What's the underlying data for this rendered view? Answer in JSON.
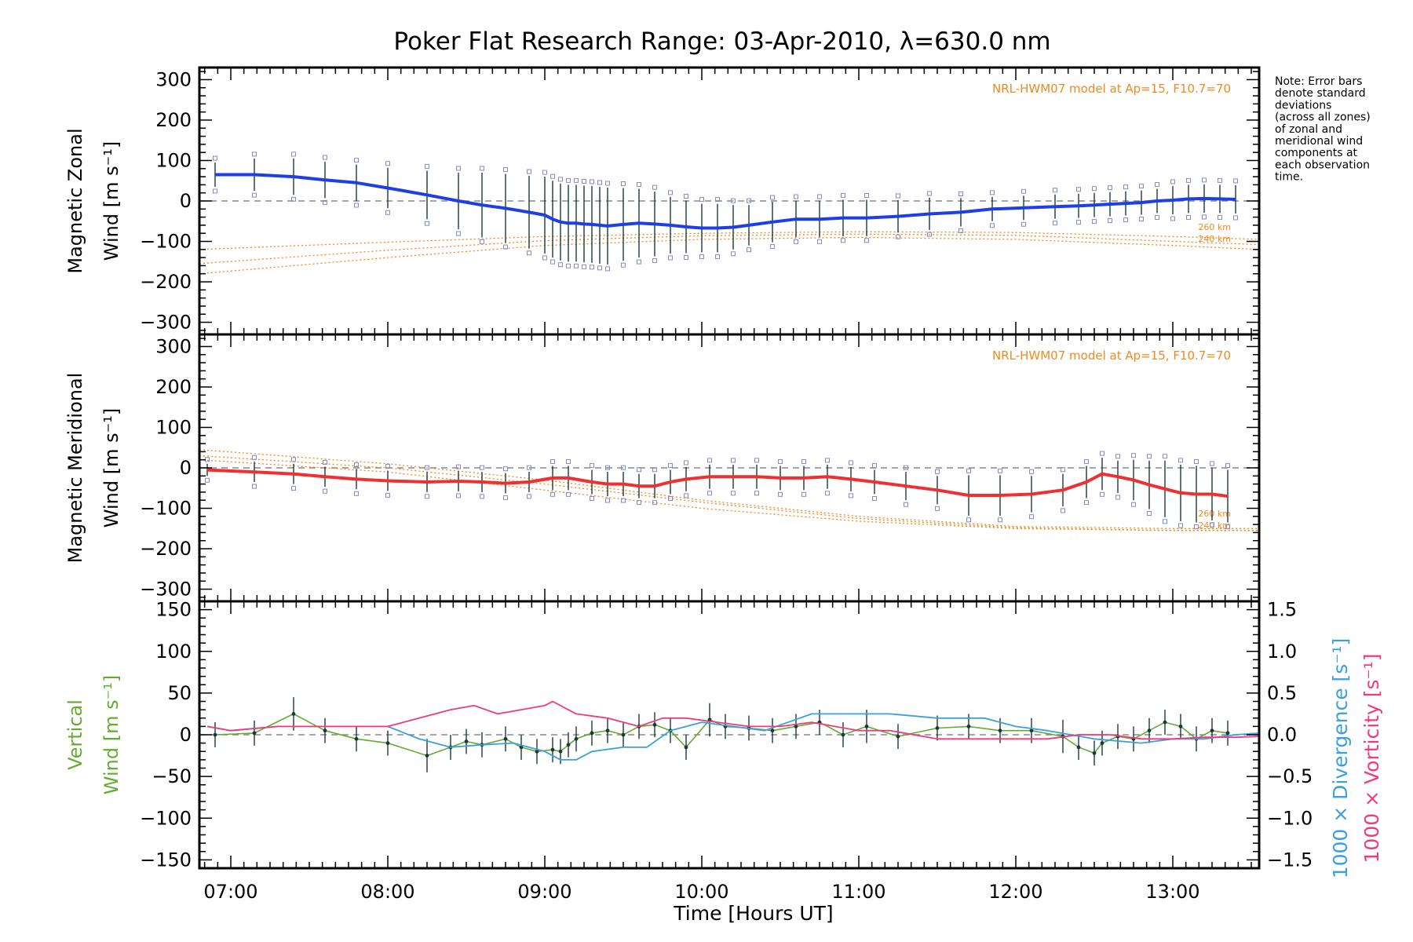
{
  "title": "Poker Flat Research Range: 03-Apr-2010, λ=630.0 nm",
  "note": [
    "Note: Error bars",
    "denote standard",
    "deviations",
    "(across all zones)",
    "of zonal and",
    "meridional wind",
    "components at",
    "each observation",
    "time."
  ],
  "xlabel": "Time [Hours UT]",
  "colors": {
    "zonal": "#1f3fe6",
    "meridional": "#f03030",
    "vertical": "#66aa33",
    "divergence": "#3ba0dd",
    "vorticity": "#ee3c7a",
    "model": "#ef8a1f",
    "zone_marker": "#8888cc",
    "error_bar": "#1a3a3a"
  },
  "chart_data": [
    {
      "type": "line",
      "panel": "zonal",
      "ylabel_line1": "Magnetic Zonal",
      "ylabel_line2": "Wind [m s⁻¹]",
      "ylim": [
        -330,
        330
      ],
      "yticks": [
        "300",
        "200",
        "100",
        "0",
        "−100",
        "−200",
        "−300"
      ],
      "yticks_values": [
        300,
        200,
        100,
        0,
        -100,
        -200,
        -300
      ],
      "xlim": [
        6.8,
        13.55
      ],
      "xticks": [
        "07:00",
        "08:00",
        "09:00",
        "10:00",
        "11:00",
        "12:00",
        "13:00"
      ],
      "xticks_values": [
        7,
        8,
        9,
        10,
        11,
        12,
        13
      ],
      "model_label": "NRL-HWM07 model at Ap=15, F10.7=70",
      "model_levels": [
        "260 km",
        "240 km"
      ],
      "model_curves": [
        {
          "x": [
            6.8,
            8,
            9,
            10,
            11,
            12,
            13,
            13.55
          ],
          "y": [
            -120,
            -102,
            -88,
            -80,
            -76,
            -78,
            -88,
            -95
          ]
        },
        {
          "x": [
            6.8,
            8,
            9,
            10,
            11,
            12,
            13,
            13.55
          ],
          "y": [
            -155,
            -122,
            -98,
            -86,
            -82,
            -85,
            -100,
            -108
          ]
        },
        {
          "x": [
            6.8,
            8,
            9,
            10,
            11,
            12,
            13,
            13.55
          ],
          "y": [
            -180,
            -140,
            -110,
            -95,
            -90,
            -95,
            -110,
            -120
          ]
        }
      ],
      "series": [
        {
          "name": "Magnetic Zonal Wind",
          "x": [
            6.9,
            7.15,
            7.4,
            7.6,
            7.8,
            8.0,
            8.25,
            8.45,
            8.6,
            8.75,
            8.9,
            9.0,
            9.05,
            9.1,
            9.15,
            9.2,
            9.25,
            9.3,
            9.35,
            9.4,
            9.5,
            9.6,
            9.7,
            9.8,
            9.9,
            10.0,
            10.1,
            10.2,
            10.3,
            10.45,
            10.6,
            10.75,
            10.9,
            11.05,
            11.25,
            11.45,
            11.65,
            11.85,
            12.05,
            12.25,
            12.4,
            12.5,
            12.6,
            12.7,
            12.8,
            12.9,
            13.0,
            13.1,
            13.2,
            13.3,
            13.4
          ],
          "y": [
            65,
            65,
            60,
            52,
            45,
            32,
            15,
            0,
            -10,
            -18,
            -28,
            -35,
            -45,
            -52,
            -55,
            -55,
            -57,
            -58,
            -60,
            -62,
            -58,
            -55,
            -57,
            -60,
            -64,
            -67,
            -67,
            -65,
            -60,
            -52,
            -45,
            -45,
            -42,
            -42,
            -38,
            -32,
            -28,
            -20,
            -17,
            -14,
            -12,
            -10,
            -8,
            -6,
            -4,
            0,
            2,
            5,
            6,
            5,
            4
          ],
          "err": [
            30,
            40,
            45,
            45,
            45,
            50,
            60,
            70,
            80,
            85,
            90,
            95,
            95,
            95,
            95,
            95,
            95,
            95,
            95,
            95,
            90,
            85,
            80,
            70,
            65,
            60,
            60,
            55,
            50,
            50,
            45,
            45,
            45,
            45,
            40,
            40,
            35,
            30,
            30,
            30,
            30,
            30,
            30,
            30,
            30,
            30,
            35,
            35,
            35,
            35,
            35
          ]
        }
      ]
    },
    {
      "type": "line",
      "panel": "meridional",
      "ylabel_line1": "Magnetic Meridional",
      "ylabel_line2": "Wind [m s⁻¹]",
      "ylim": [
        -330,
        330
      ],
      "yticks": [
        "300",
        "200",
        "100",
        "0",
        "−100",
        "−200",
        "−300"
      ],
      "yticks_values": [
        300,
        200,
        100,
        0,
        -100,
        -200,
        -300
      ],
      "model_label": "NRL-HWM07 model at Ap=15, F10.7=70",
      "model_levels": [
        "260 km",
        "240 km"
      ],
      "model_curves": [
        {
          "x": [
            6.8,
            8,
            9,
            10,
            11,
            12,
            13,
            13.55
          ],
          "y": [
            45,
            10,
            -30,
            -80,
            -120,
            -145,
            -150,
            -150
          ]
        },
        {
          "x": [
            6.8,
            8,
            9,
            10,
            11,
            12,
            13,
            13.55
          ],
          "y": [
            30,
            0,
            -40,
            -85,
            -125,
            -148,
            -155,
            -155
          ]
        },
        {
          "x": [
            6.8,
            8,
            9,
            10,
            11,
            12,
            13,
            13.55
          ],
          "y": [
            20,
            -10,
            -55,
            -100,
            -132,
            -150,
            -155,
            -155
          ]
        }
      ],
      "series": [
        {
          "name": "Magnetic Meridional Wind",
          "x": [
            6.85,
            7.15,
            7.4,
            7.6,
            7.8,
            8.0,
            8.25,
            8.45,
            8.6,
            8.75,
            8.9,
            9.05,
            9.15,
            9.3,
            9.4,
            9.5,
            9.6,
            9.7,
            9.8,
            9.9,
            10.05,
            10.2,
            10.35,
            10.5,
            10.65,
            10.8,
            10.95,
            11.1,
            11.3,
            11.5,
            11.7,
            11.9,
            12.1,
            12.3,
            12.45,
            12.55,
            12.65,
            12.75,
            12.85,
            12.95,
            13.05,
            13.15,
            13.25,
            13.35
          ],
          "y": [
            -5,
            -10,
            -15,
            -22,
            -28,
            -32,
            -35,
            -33,
            -35,
            -38,
            -35,
            -25,
            -25,
            -35,
            -40,
            -40,
            -45,
            -45,
            -35,
            -28,
            -22,
            -22,
            -22,
            -25,
            -25,
            -22,
            -28,
            -35,
            -45,
            -55,
            -68,
            -68,
            -65,
            -55,
            -35,
            -15,
            -22,
            -30,
            -42,
            -52,
            -62,
            -65,
            -65,
            -70
          ],
          "err": [
            15,
            25,
            25,
            25,
            25,
            25,
            25,
            25,
            25,
            25,
            25,
            30,
            30,
            30,
            30,
            30,
            30,
            30,
            30,
            30,
            30,
            30,
            30,
            30,
            30,
            30,
            30,
            30,
            35,
            35,
            50,
            50,
            45,
            40,
            40,
            40,
            40,
            50,
            60,
            70,
            70,
            70,
            65,
            65
          ]
        }
      ]
    },
    {
      "type": "line",
      "panel": "vertical",
      "ylabel_line1": "Vertical",
      "ylabel_line2": "Wind [m s⁻¹]",
      "y2label_divergence": "1000 × Divergence [s⁻¹]",
      "y2label_vorticity": "1000 × Vorticity [s⁻¹]",
      "ylim": [
        -160,
        160
      ],
      "yticks": [
        "150",
        "100",
        "50",
        "0",
        "−50",
        "−100",
        "−150"
      ],
      "yticks_values": [
        150,
        100,
        50,
        0,
        -50,
        -100,
        -150
      ],
      "y2lim": [
        -1.6,
        1.6
      ],
      "y2ticks": [
        "1.5",
        "1.0",
        "0.5",
        "0.0",
        "−0.5",
        "−1.0",
        "−1.5"
      ],
      "y2ticks_values": [
        1.5,
        1.0,
        0.5,
        0.0,
        -0.5,
        -1.0,
        -1.5
      ],
      "series": [
        {
          "name": "Vertical Wind",
          "axis": "left",
          "x": [
            6.9,
            7.15,
            7.4,
            7.6,
            7.8,
            8.0,
            8.25,
            8.4,
            8.5,
            8.6,
            8.75,
            8.85,
            8.95,
            9.05,
            9.1,
            9.15,
            9.2,
            9.3,
            9.4,
            9.5,
            9.6,
            9.7,
            9.8,
            9.9,
            10.05,
            10.15,
            10.3,
            10.45,
            10.6,
            10.75,
            10.9,
            11.05,
            11.25,
            11.5,
            11.7,
            11.9,
            12.1,
            12.3,
            12.4,
            12.5,
            12.55,
            12.65,
            12.75,
            12.85,
            12.95,
            13.05,
            13.15,
            13.25,
            13.35
          ],
          "y": [
            0,
            2,
            25,
            5,
            -5,
            -10,
            -25,
            -15,
            -8,
            -12,
            -5,
            -15,
            -20,
            -18,
            -20,
            -12,
            -5,
            2,
            5,
            0,
            10,
            12,
            5,
            -15,
            18,
            10,
            8,
            5,
            10,
            15,
            0,
            10,
            -2,
            8,
            10,
            5,
            5,
            -2,
            -15,
            -22,
            -10,
            -2,
            -5,
            5,
            15,
            10,
            -5,
            5,
            2
          ],
          "err": [
            15,
            15,
            20,
            15,
            15,
            15,
            20,
            15,
            15,
            15,
            15,
            15,
            15,
            15,
            15,
            15,
            15,
            15,
            15,
            15,
            15,
            15,
            15,
            15,
            20,
            15,
            15,
            15,
            15,
            15,
            15,
            20,
            15,
            15,
            15,
            15,
            15,
            20,
            15,
            15,
            15,
            15,
            15,
            15,
            15,
            15,
            15,
            15,
            15
          ]
        },
        {
          "name": "1000 × Divergence",
          "axis": "right",
          "x": [
            6.85,
            7.0,
            7.3,
            7.6,
            8.0,
            8.2,
            8.4,
            8.6,
            8.8,
            9.0,
            9.1,
            9.2,
            9.3,
            9.5,
            9.65,
            9.8,
            10.0,
            10.2,
            10.4,
            10.7,
            11.0,
            11.2,
            11.5,
            11.8,
            12.0,
            12.2,
            12.5,
            12.8,
            13.0,
            13.2,
            13.4,
            13.55
          ],
          "y": [
            0.1,
            0.05,
            0.1,
            0.1,
            0.1,
            -0.05,
            -0.15,
            -0.12,
            -0.1,
            -0.2,
            -0.3,
            -0.3,
            -0.2,
            -0.15,
            -0.15,
            0.05,
            0.15,
            0.1,
            0.05,
            0.25,
            0.25,
            0.25,
            0.2,
            0.2,
            0.1,
            0.05,
            -0.05,
            -0.1,
            -0.05,
            -0.05,
            0.0,
            0.02
          ]
        },
        {
          "name": "1000 × Vorticity",
          "axis": "right",
          "x": [
            6.85,
            7.0,
            7.3,
            7.6,
            8.0,
            8.2,
            8.4,
            8.55,
            8.7,
            8.85,
            9.0,
            9.05,
            9.2,
            9.4,
            9.6,
            9.75,
            9.9,
            10.1,
            10.3,
            10.5,
            10.7,
            11.0,
            11.2,
            11.5,
            11.8,
            12.0,
            12.2,
            12.4,
            12.6,
            12.8,
            13.0,
            13.2,
            13.4,
            13.55
          ],
          "y": [
            0.1,
            0.05,
            0.1,
            0.1,
            0.1,
            0.2,
            0.3,
            0.35,
            0.25,
            0.3,
            0.35,
            0.4,
            0.25,
            0.2,
            0.1,
            0.2,
            0.2,
            0.15,
            0.1,
            0.1,
            0.15,
            0.05,
            0.05,
            -0.05,
            -0.05,
            -0.05,
            -0.05,
            0.0,
            0.0,
            -0.05,
            -0.05,
            -0.03,
            -0.03,
            -0.02
          ]
        }
      ]
    }
  ]
}
